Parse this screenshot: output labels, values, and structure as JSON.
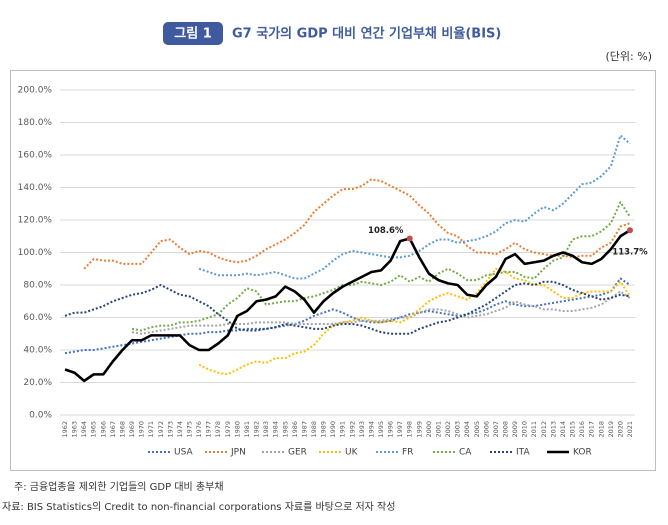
{
  "badge": "그림 1",
  "unit": "(단위: %)",
  "notes": [
    "주: 금융업종을 제외한 기업들의 GDP 대비 총부채",
    "자료: BIS Statistics의 Credit to non-financial corporations 자료를 바탕으로 저자 작성"
  ],
  "chart_data": {
    "type": "line",
    "title": "G7 국가의 GDP 대비 연간 기업부채 비율(BIS)",
    "categories": [
      "1962",
      "1963",
      "1964",
      "1965",
      "1966",
      "1967",
      "1968",
      "1969",
      "1970",
      "1971",
      "1972",
      "1973",
      "1974",
      "1975",
      "1976",
      "1977",
      "1978",
      "1979",
      "1980",
      "1981",
      "1982",
      "1983",
      "1984",
      "1985",
      "1986",
      "1987",
      "1988",
      "1989",
      "1990",
      "1991",
      "1992",
      "1993",
      "1994",
      "1995",
      "1996",
      "1997",
      "1998",
      "1999",
      "2000",
      "2001",
      "2002",
      "2003",
      "2004",
      "2005",
      "2006",
      "2007",
      "2008",
      "2009",
      "2010",
      "2011",
      "2012",
      "2013",
      "2014",
      "2015",
      "2016",
      "2017",
      "2018",
      "2019",
      "2020",
      "2021"
    ],
    "ylim": [
      0,
      200
    ],
    "yticks": [
      {
        "value": 0,
        "label": "0.0%"
      },
      {
        "value": 20,
        "label": "20.0%"
      },
      {
        "value": 40,
        "label": "40.0%"
      },
      {
        "value": 60,
        "label": "60.0%"
      },
      {
        "value": 80,
        "label": "80.0%"
      },
      {
        "value": 100,
        "label": "100.0%"
      },
      {
        "value": 120,
        "label": "120.0%"
      },
      {
        "value": 140,
        "label": "140.0%"
      },
      {
        "value": 160,
        "label": "160.0%"
      },
      {
        "value": 180,
        "label": "180.0%"
      },
      {
        "value": 200,
        "label": "200.0%"
      }
    ],
    "grid": true,
    "legend": "bottom",
    "series": [
      {
        "name": "USA",
        "color": "#4472c4",
        "line_style": "dotted",
        "values": [
          38,
          39,
          40,
          40,
          41,
          42,
          43,
          44,
          45,
          46,
          47,
          48,
          49,
          50,
          50,
          51,
          51,
          52,
          52,
          53,
          53,
          53,
          54,
          55,
          56,
          58,
          61,
          63,
          65,
          63,
          60,
          58,
          57,
          57,
          58,
          60,
          62,
          63,
          64,
          63,
          62,
          61,
          62,
          63,
          65,
          68,
          70,
          68,
          67,
          67,
          68,
          69,
          70,
          71,
          72,
          73,
          74,
          76,
          84,
          80
        ]
      },
      {
        "name": "JPN",
        "color": "#ed7d31",
        "line_style": "dotted",
        "values": [
          null,
          null,
          90,
          96,
          95,
          95,
          93,
          93,
          93,
          100,
          107,
          108,
          103,
          99,
          101,
          100,
          97,
          95,
          94,
          95,
          98,
          102,
          105,
          108,
          112,
          117,
          125,
          130,
          135,
          139,
          139,
          141,
          145,
          144,
          141,
          138,
          135,
          129,
          124,
          117,
          112,
          110,
          104,
          100,
          100,
          99,
          102,
          106,
          102,
          100,
          99,
          98,
          98,
          97,
          98,
          98,
          103,
          106,
          116,
          118
        ]
      },
      {
        "name": "GER",
        "color": "#a5a5a5",
        "line_style": "dotted",
        "values": [
          null,
          null,
          null,
          null,
          null,
          null,
          null,
          51,
          50,
          51,
          52,
          53,
          54,
          55,
          55,
          55,
          55,
          56,
          56,
          56,
          57,
          57,
          57,
          57,
          56,
          56,
          56,
          56,
          56,
          57,
          57,
          58,
          58,
          58,
          59,
          60,
          60,
          63,
          65,
          65,
          64,
          62,
          60,
          61,
          62,
          64,
          66,
          70,
          68,
          67,
          65,
          65,
          64,
          64,
          65,
          66,
          68,
          72,
          76,
          72
        ]
      },
      {
        "name": "UK",
        "color": "#ffc000",
        "line_style": "dotted",
        "values": [
          null,
          null,
          null,
          null,
          null,
          null,
          null,
          null,
          null,
          null,
          null,
          null,
          null,
          null,
          31,
          28,
          26,
          25,
          28,
          31,
          33,
          32,
          35,
          35,
          38,
          39,
          43,
          50,
          55,
          57,
          58,
          60,
          58,
          57,
          58,
          57,
          60,
          65,
          70,
          73,
          75,
          73,
          71,
          75,
          82,
          90,
          88,
          84,
          83,
          80,
          80,
          76,
          72,
          72,
          75,
          76,
          76,
          76,
          82,
          73
        ]
      },
      {
        "name": "FR",
        "color": "#5b9bd5",
        "line_style": "dotted",
        "values": [
          null,
          null,
          null,
          null,
          null,
          null,
          null,
          null,
          null,
          null,
          null,
          null,
          null,
          null,
          90,
          88,
          86,
          86,
          86,
          87,
          86,
          87,
          88,
          86,
          84,
          84,
          87,
          90,
          95,
          99,
          101,
          100,
          99,
          98,
          97,
          97,
          98,
          101,
          105,
          108,
          108,
          106,
          107,
          108,
          110,
          113,
          118,
          120,
          119,
          124,
          128,
          126,
          130,
          136,
          142,
          143,
          147,
          153,
          172,
          167
        ]
      },
      {
        "name": "CA",
        "color": "#70ad47",
        "line_style": "dotted",
        "values": [
          null,
          null,
          null,
          null,
          null,
          null,
          null,
          53,
          52,
          54,
          55,
          55,
          57,
          57,
          58,
          60,
          62,
          68,
          72,
          78,
          76,
          68,
          69,
          70,
          70,
          72,
          73,
          75,
          77,
          80,
          80,
          82,
          81,
          80,
          82,
          86,
          82,
          85,
          82,
          87,
          90,
          87,
          83,
          83,
          86,
          87,
          88,
          88,
          85,
          84,
          90,
          95,
          97,
          108,
          110,
          110,
          113,
          118,
          131,
          122
        ]
      },
      {
        "name": "ITA",
        "color": "#264478",
        "line_style": "dotted",
        "values": [
          61,
          63,
          63,
          65,
          67,
          70,
          72,
          74,
          75,
          77,
          80,
          77,
          74,
          73,
          70,
          67,
          62,
          58,
          53,
          52,
          52,
          53,
          54,
          56,
          55,
          54,
          53,
          53,
          55,
          56,
          56,
          55,
          53,
          51,
          50,
          50,
          50,
          53,
          55,
          57,
          58,
          60,
          62,
          65,
          68,
          72,
          76,
          80,
          81,
          80,
          82,
          82,
          80,
          77,
          75,
          73,
          71,
          72,
          74,
          73
        ]
      },
      {
        "name": "KOR",
        "color": "#000000",
        "line_style": "solid",
        "values": [
          28,
          26,
          21,
          25,
          25,
          33,
          40,
          46,
          46,
          49,
          49,
          49,
          49,
          43,
          40,
          40,
          44,
          49,
          61,
          64,
          70,
          71,
          73,
          79,
          76,
          71,
          63,
          70,
          75,
          79,
          82,
          85,
          88,
          89,
          95,
          107,
          108.6,
          97,
          87,
          83,
          81,
          80,
          74,
          73,
          80,
          85,
          96,
          99,
          93,
          94,
          95,
          98,
          100,
          98,
          94,
          93,
          96,
          102,
          110,
          113.7
        ],
        "value_labels": [
          null,
          null,
          null,
          null,
          null,
          null,
          null,
          null,
          null,
          null,
          null,
          null,
          null,
          null,
          null,
          null,
          null,
          null,
          null,
          null,
          null,
          null,
          null,
          null,
          null,
          null,
          null,
          null,
          null,
          null,
          null,
          null,
          null,
          null,
          null,
          null,
          "108.6%",
          null,
          null,
          null,
          null,
          null,
          null,
          null,
          null,
          null,
          null,
          null,
          null,
          null,
          null,
          null,
          null,
          null,
          null,
          null,
          null,
          null,
          null,
          "113.7%"
        ]
      }
    ]
  }
}
